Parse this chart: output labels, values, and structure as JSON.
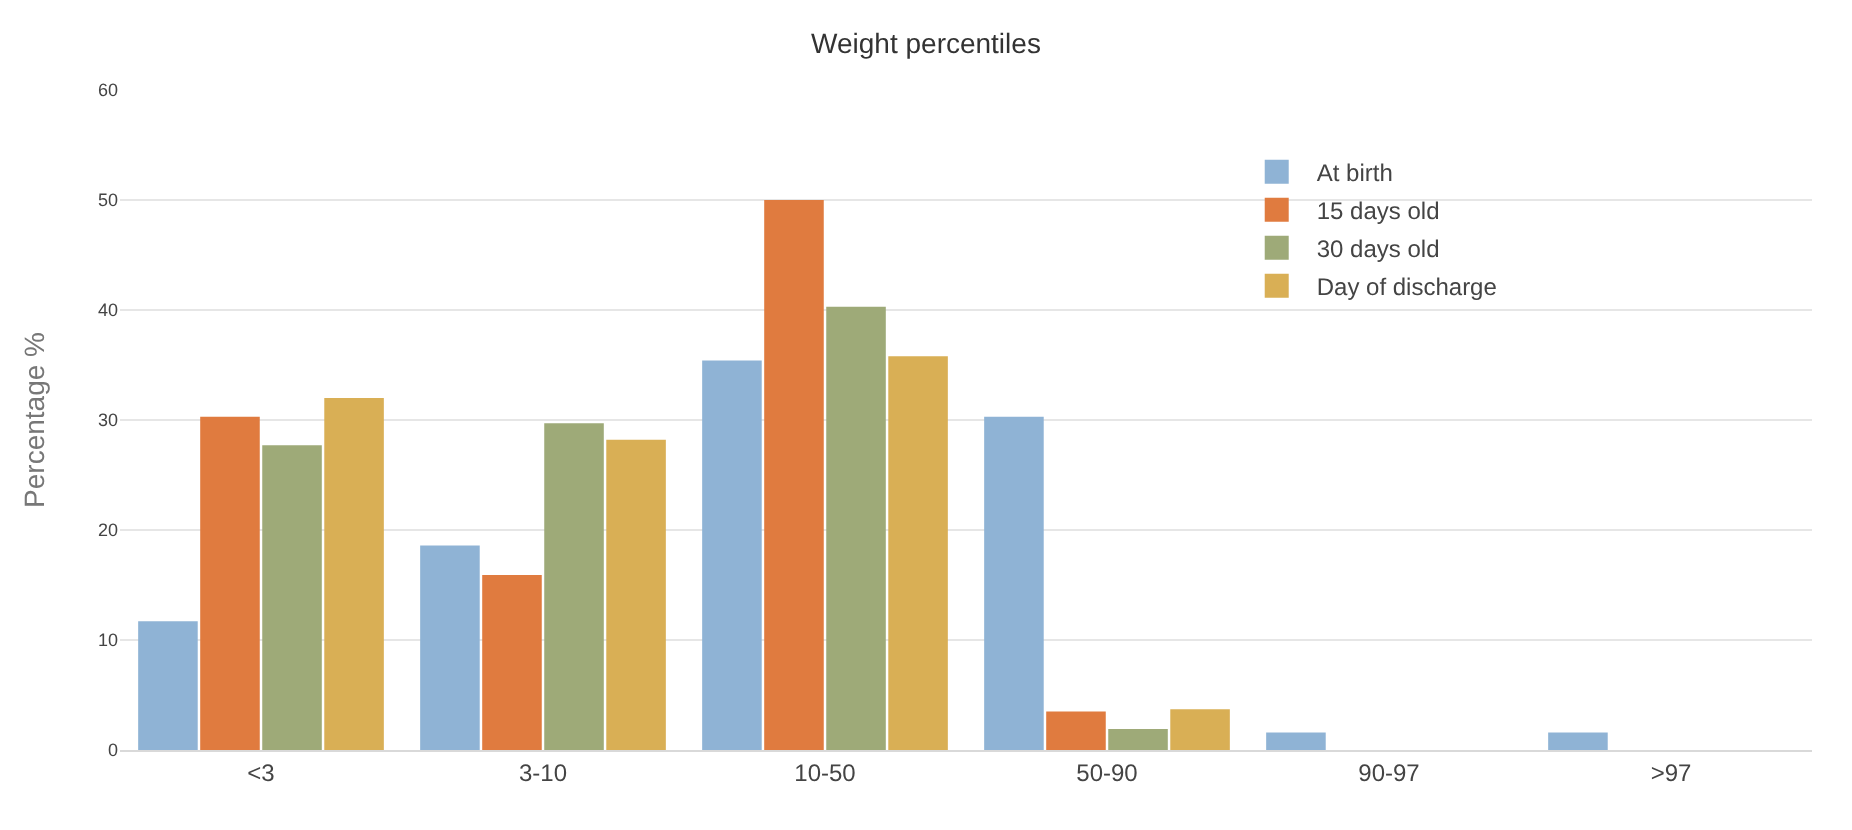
{
  "chart_data": {
    "type": "bar",
    "title": "Weight percentiles",
    "ylabel": "Percentage %",
    "categories": [
      "<3",
      "3-10",
      "10-50",
      "50-90",
      "90-97",
      ">97"
    ],
    "series": [
      {
        "name": "At birth",
        "color": "#8fb3d5",
        "values": [
          11.7,
          18.6,
          35.4,
          30.3,
          1.6,
          1.6
        ]
      },
      {
        "name": "15 days old",
        "color": "#e07b3f",
        "values": [
          30.3,
          15.9,
          50,
          3.5,
          0,
          0
        ]
      },
      {
        "name": "30 days old",
        "color": "#9eaa78",
        "values": [
          27.7,
          29.7,
          40.3,
          1.9,
          0,
          0
        ]
      },
      {
        "name": "Day of discharge",
        "color": "#d9af55",
        "values": [
          32.0,
          28.2,
          35.8,
          3.7,
          0,
          0
        ]
      }
    ],
    "ylim": [
      0,
      60
    ],
    "yticks": [
      0,
      10,
      20,
      30,
      40,
      50,
      60
    ],
    "grid": "y",
    "legend": "top right"
  }
}
